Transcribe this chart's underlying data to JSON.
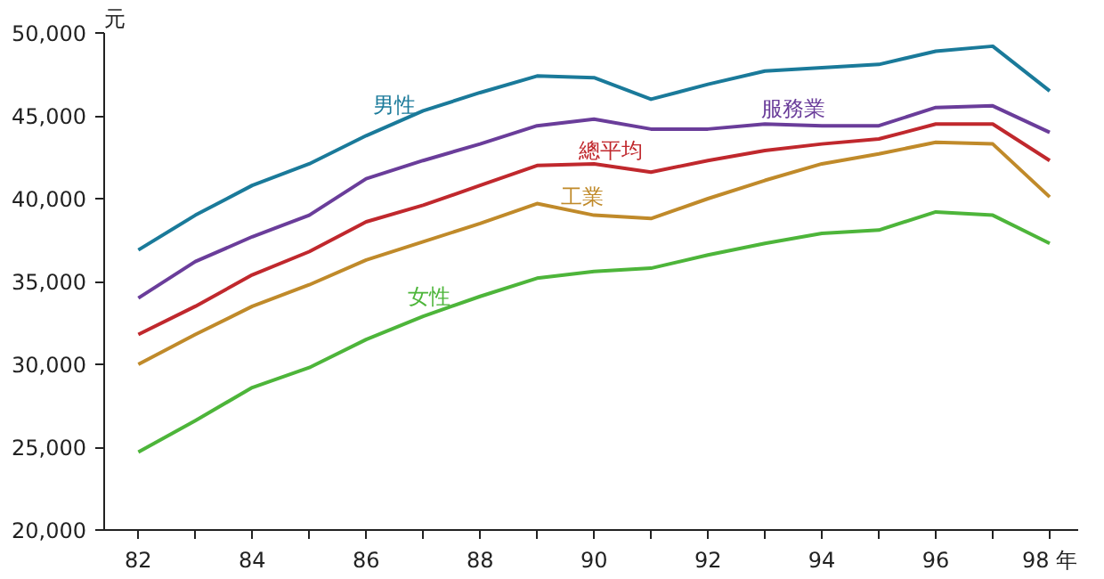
{
  "chart_data": {
    "type": "line",
    "ylabel": "元",
    "x": [
      82,
      83,
      84,
      85,
      86,
      87,
      88,
      89,
      90,
      91,
      92,
      93,
      94,
      95,
      96,
      97,
      98
    ],
    "series": [
      {
        "name": "男性",
        "color": "#1a7a9a",
        "values": [
          36900,
          39000,
          40800,
          42100,
          43800,
          45300,
          46400,
          47400,
          47300,
          46000,
          46900,
          47700,
          47900,
          48100,
          48900,
          49200,
          46500
        ]
      },
      {
        "name": "服務業",
        "color": "#6a3d9a",
        "values": [
          34000,
          36200,
          37700,
          39000,
          41200,
          42300,
          43300,
          44400,
          44800,
          44200,
          44200,
          44500,
          44400,
          44400,
          45500,
          45600,
          44000
        ]
      },
      {
        "name": "總平均",
        "color": "#c0282d",
        "values": [
          31800,
          33500,
          35400,
          36800,
          38600,
          39600,
          40800,
          42000,
          42100,
          41600,
          42300,
          42900,
          43300,
          43600,
          44500,
          44500,
          42300
        ]
      },
      {
        "name": "工業",
        "color": "#c08a2a",
        "values": [
          30000,
          31800,
          33500,
          34800,
          36300,
          37400,
          38500,
          39700,
          39000,
          38800,
          40000,
          41100,
          42100,
          42700,
          43400,
          43300,
          40100
        ]
      },
      {
        "name": "女性",
        "color": "#4db53a",
        "values": [
          24700,
          26600,
          28600,
          29800,
          31500,
          32900,
          34100,
          35200,
          35600,
          35800,
          36600,
          37300,
          37900,
          38100,
          39200,
          39000,
          37300
        ]
      }
    ],
    "xlim": [
      81.4,
      98.5
    ],
    "ylim": [
      20000,
      50000
    ],
    "xticks": [
      82,
      {
        "value": 83,
        "label": null
      },
      84,
      {
        "value": 85,
        "label": null
      },
      86,
      {
        "value": 87,
        "label": null
      },
      88,
      {
        "value": 89,
        "label": null
      },
      90,
      {
        "value": 91,
        "label": null
      },
      92,
      {
        "value": 93,
        "label": null
      },
      94,
      {
        "value": 95,
        "label": null
      },
      96,
      {
        "value": 97,
        "label": null
      },
      {
        "value": 98,
        "label": "98 年"
      }
    ],
    "yticks": [
      {
        "value": 20000,
        "label": "20,000"
      },
      {
        "value": 25000,
        "label": "25,000"
      },
      {
        "value": 30000,
        "label": "30,000"
      },
      {
        "value": 35000,
        "label": "35,000"
      },
      {
        "value": 40000,
        "label": "40,000"
      },
      {
        "value": 45000,
        "label": "45,000"
      },
      {
        "value": 50000,
        "label": "50,000"
      }
    ],
    "grid": false,
    "marker": "none",
    "line_style": "solid"
  }
}
